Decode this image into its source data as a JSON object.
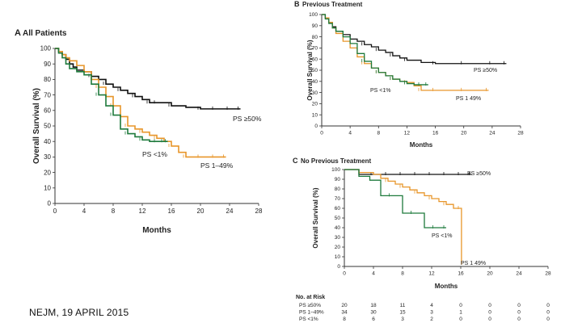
{
  "footer": "NEJM, 19 APRIL 2015",
  "colors": {
    "ps50": "#111111",
    "ps149": "#e8962a",
    "ps1": "#1e7a3c",
    "axis": "#333333"
  },
  "chart_data": [
    {
      "id": "A",
      "type": "line",
      "panel_letter": "A",
      "title": "All Patients",
      "xlabel": "Months",
      "ylabel": "Overall Survival (%)",
      "xlim": [
        0,
        28
      ],
      "ylim": [
        0,
        100
      ],
      "xticks": [
        0,
        4,
        8,
        12,
        16,
        20,
        24,
        28
      ],
      "yticks": [
        0,
        10,
        20,
        30,
        40,
        50,
        60,
        70,
        80,
        90,
        100
      ],
      "series": [
        {
          "name": "PS ≥50%",
          "color": "#111111",
          "x": [
            0,
            0.5,
            1,
            1.5,
            2,
            2.5,
            3,
            4,
            5,
            6,
            7,
            8,
            9,
            10,
            11,
            12,
            13,
            14,
            16,
            18,
            20,
            22,
            24,
            25.5
          ],
          "y": [
            100,
            98,
            96,
            93,
            90,
            88,
            86,
            85,
            82,
            80,
            77,
            75,
            73,
            71,
            69,
            67,
            65,
            65,
            63,
            62,
            61,
            61,
            61,
            61
          ]
        },
        {
          "name": "PS 1–49%",
          "color": "#e8962a",
          "x": [
            0,
            0.5,
            1,
            1.5,
            2,
            3,
            4,
            5,
            6,
            7,
            8,
            9,
            10,
            11,
            12,
            13,
            14,
            15,
            16,
            17,
            18,
            20,
            22,
            23.5
          ],
          "y": [
            100,
            98,
            96,
            94,
            92,
            89,
            85,
            80,
            75,
            69,
            63,
            56,
            50,
            48,
            46,
            44,
            42,
            40,
            37,
            33,
            30,
            30,
            30,
            30
          ]
        },
        {
          "name": "PS <1%",
          "color": "#1e7a3c",
          "x": [
            0,
            0.5,
            1,
            1.5,
            2,
            3,
            4,
            5,
            6,
            7,
            8,
            9,
            10,
            11,
            12,
            13,
            14,
            15,
            15.5
          ],
          "y": [
            100,
            97,
            94,
            90,
            87,
            85,
            83,
            77,
            70,
            63,
            57,
            48,
            45,
            43,
            41,
            40,
            40,
            40,
            40
          ]
        }
      ],
      "labels": [
        "PS ≥50%",
        "PS <1%",
        "PS 1–49%"
      ]
    },
    {
      "id": "B",
      "type": "line",
      "panel_letter": "B",
      "title": "Previous Treatment",
      "xlabel": "Months",
      "ylabel": "Overall Survival (%)",
      "xlim": [
        0,
        28
      ],
      "ylim": [
        0,
        100
      ],
      "xticks": [
        0,
        4,
        8,
        12,
        16,
        20,
        24,
        28
      ],
      "yticks": [
        0,
        10,
        20,
        30,
        40,
        50,
        60,
        70,
        80,
        90,
        100
      ],
      "series": [
        {
          "name": "PS ≥50%",
          "color": "#111111",
          "x": [
            0,
            0.5,
            1,
            1.5,
            2,
            3,
            4,
            5,
            6,
            7,
            8,
            9,
            10,
            11,
            12,
            14,
            16,
            20,
            24,
            26
          ],
          "y": [
            100,
            97,
            93,
            89,
            85,
            82,
            78,
            76,
            73,
            71,
            68,
            66,
            63,
            61,
            59,
            57,
            56,
            56,
            56,
            56
          ]
        },
        {
          "name": "PS 1–49%",
          "color": "#e8962a",
          "x": [
            0,
            0.5,
            1,
            1.5,
            2,
            3,
            4,
            5,
            6,
            7,
            8,
            9,
            10,
            11,
            12,
            13,
            14,
            16,
            20,
            23.5
          ],
          "y": [
            100,
            97,
            93,
            88,
            83,
            76,
            70,
            62,
            56,
            52,
            48,
            45,
            42,
            40,
            39,
            36,
            32,
            32,
            32,
            32
          ]
        },
        {
          "name": "PS <1%",
          "color": "#1e7a3c",
          "x": [
            0,
            0.5,
            1,
            1.5,
            2,
            3,
            4,
            5,
            6,
            7,
            8,
            9,
            10,
            11,
            12,
            13,
            14,
            15
          ],
          "y": [
            100,
            96,
            92,
            88,
            85,
            80,
            74,
            65,
            58,
            52,
            48,
            45,
            42,
            40,
            38,
            37,
            37,
            37
          ]
        }
      ],
      "labels": [
        "PS ≥50%",
        "PS <1%",
        "PS 1 49%"
      ]
    },
    {
      "id": "C",
      "type": "line",
      "panel_letter": "C",
      "title": "No Previous Treatment",
      "xlabel": "Months",
      "ylabel": "Overall Survival (%)",
      "xlim": [
        0,
        28
      ],
      "ylim": [
        0,
        100
      ],
      "xticks": [
        0,
        4,
        8,
        12,
        16,
        20,
        24,
        28
      ],
      "yticks": [
        0,
        10,
        20,
        30,
        40,
        50,
        60,
        70,
        80,
        90,
        100
      ],
      "series": [
        {
          "name": "PS ≥50%",
          "color": "#111111",
          "x": [
            0,
            2,
            4,
            6,
            8,
            10,
            12,
            14,
            16,
            17.5
          ],
          "y": [
            100,
            95,
            95,
            95,
            95,
            95,
            95,
            95,
            95,
            95
          ]
        },
        {
          "name": "PS 1–49%",
          "color": "#e8962a",
          "x": [
            0,
            2,
            4,
            5,
            6,
            7,
            8,
            9,
            10,
            11,
            12,
            13,
            14,
            15,
            16,
            16.1
          ],
          "y": [
            100,
            97,
            95,
            91,
            88,
            85,
            82,
            79,
            76,
            73,
            70,
            67,
            64,
            60,
            60,
            2
          ]
        },
        {
          "name": "PS <1%",
          "color": "#1e7a3c",
          "x": [
            0,
            2,
            3.5,
            5,
            6.5,
            8,
            9.5,
            11,
            12.5,
            14
          ],
          "y": [
            100,
            93,
            89,
            73,
            73,
            55,
            55,
            40,
            40,
            40
          ]
        }
      ],
      "labels": [
        "PS ≥50%",
        "PS <1%",
        "PS 1 49%"
      ]
    }
  ],
  "risk_table": {
    "title": "No. at Risk",
    "rows": [
      {
        "label": "PS ≥50%",
        "values": [
          "20",
          "18",
          "11",
          "4",
          "0",
          "0",
          "0",
          "0"
        ]
      },
      {
        "label": "PS 1–49%",
        "values": [
          "34",
          "30",
          "15",
          "3",
          "1",
          "0",
          "0",
          "0"
        ]
      },
      {
        "label": "PS <1%",
        "values": [
          "8",
          "6",
          "3",
          "2",
          "0",
          "0",
          "0",
          "0"
        ]
      }
    ]
  }
}
